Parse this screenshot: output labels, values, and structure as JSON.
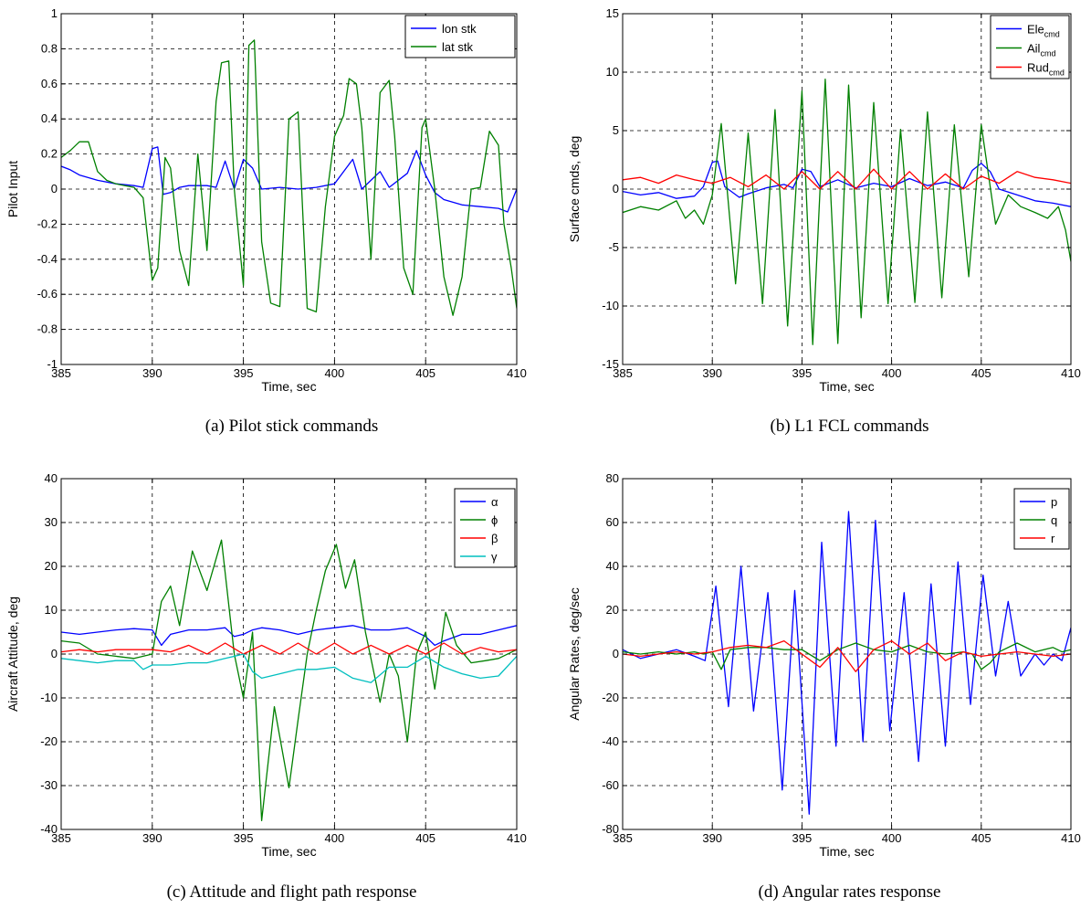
{
  "chart_data": [
    {
      "type": "line",
      "caption": "(a) Pilot stick commands",
      "xlabel": "Time, sec",
      "ylabel": "Pilot Input",
      "xlim": [
        385,
        410
      ],
      "ylim": [
        -1,
        1
      ],
      "xticks": [
        385,
        390,
        395,
        400,
        405,
        410
      ],
      "yticks": [
        -1,
        -0.8,
        -0.6,
        -0.4,
        -0.2,
        0,
        0.2,
        0.4,
        0.6,
        0.8,
        1
      ],
      "ytick_labels": [
        "-1",
        "-0.8",
        "-0.6",
        "-0.4",
        "-0.2",
        "0",
        "0.2",
        "0.4",
        "0.6",
        "0.8",
        "1"
      ],
      "grid": true,
      "legend_position": "top-right",
      "series": [
        {
          "name": "lon stk",
          "color": "#0000ff",
          "x": [
            385,
            385.5,
            386,
            387,
            388,
            389,
            389.5,
            390,
            390.3,
            390.6,
            391,
            391.5,
            392,
            393,
            393.5,
            394,
            394.5,
            395,
            395.5,
            396,
            397,
            398,
            399,
            400,
            401,
            401.5,
            402,
            402.5,
            403,
            404,
            404.5,
            405,
            405.5,
            406,
            407,
            408,
            409,
            409.5,
            410
          ],
          "y": [
            0.13,
            0.11,
            0.08,
            0.05,
            0.03,
            0.02,
            0.01,
            0.23,
            0.24,
            -0.03,
            -0.02,
            0.01,
            0.02,
            0.02,
            0.01,
            0.16,
            0.0,
            0.17,
            0.12,
            0.0,
            0.01,
            0.0,
            0.01,
            0.03,
            0.17,
            0.0,
            0.05,
            0.1,
            0.01,
            0.09,
            0.22,
            0.08,
            -0.02,
            -0.06,
            -0.09,
            -0.1,
            -0.11,
            -0.13,
            0.0
          ]
        },
        {
          "name": "lat stk",
          "color": "#008000",
          "x": [
            385,
            385.5,
            386,
            386.5,
            387,
            387.5,
            388,
            388.5,
            389,
            389.5,
            390,
            390.3,
            390.7,
            391,
            391.5,
            392,
            392.5,
            393,
            393.5,
            393.8,
            394.2,
            394.5,
            395,
            395.3,
            395.6,
            396,
            396.5,
            397,
            397.5,
            398,
            398.5,
            399,
            399.5,
            400,
            400.5,
            400.8,
            401.2,
            401.5,
            402,
            402.5,
            403,
            403.3,
            403.8,
            404.3,
            404.8,
            405,
            405.5,
            406,
            406.5,
            407,
            407.5,
            408,
            408.5,
            409,
            409.3,
            409.7,
            410
          ],
          "y": [
            0.18,
            0.22,
            0.27,
            0.27,
            0.1,
            0.05,
            0.03,
            0.02,
            0.01,
            -0.05,
            -0.52,
            -0.45,
            0.18,
            0.12,
            -0.35,
            -0.55,
            0.2,
            -0.35,
            0.5,
            0.72,
            0.73,
            0.0,
            -0.55,
            0.82,
            0.85,
            -0.3,
            -0.65,
            -0.67,
            0.4,
            0.44,
            -0.68,
            -0.7,
            -0.1,
            0.3,
            0.42,
            0.63,
            0.6,
            0.35,
            -0.4,
            0.55,
            0.62,
            0.3,
            -0.45,
            -0.6,
            0.35,
            0.4,
            0.0,
            -0.5,
            -0.72,
            -0.5,
            0.0,
            0.01,
            0.33,
            0.25,
            -0.2,
            -0.45,
            -0.68
          ]
        }
      ]
    },
    {
      "type": "line",
      "caption": "(b) L1 FCL commands",
      "xlabel": "Time, sec",
      "ylabel": "Surface cmds, deg",
      "xlim": [
        385,
        410
      ],
      "ylim": [
        -15,
        15
      ],
      "xticks": [
        385,
        390,
        395,
        400,
        405,
        410
      ],
      "yticks": [
        -15,
        -10,
        -5,
        0,
        5,
        10,
        15
      ],
      "ytick_labels": [
        "-15",
        "-10",
        "-5",
        "0",
        "5",
        "10",
        "15"
      ],
      "grid": true,
      "legend_position": "top-right",
      "series": [
        {
          "name": "Ele",
          "subscript": "cmd",
          "color": "#0000ff",
          "x": [
            385,
            386,
            387,
            388,
            389,
            389.5,
            390,
            390.3,
            390.7,
            391.5,
            392,
            393,
            394,
            394.5,
            395,
            395.5,
            396,
            397,
            398,
            399,
            400,
            401,
            402,
            403,
            404,
            404.5,
            405,
            405.5,
            406,
            407,
            408,
            409,
            410
          ],
          "y": [
            -0.2,
            -0.5,
            -0.3,
            -0.8,
            -0.6,
            0.2,
            2.3,
            2.4,
            0.2,
            -0.7,
            -0.4,
            0.1,
            0.4,
            0.1,
            1.7,
            1.5,
            0.2,
            0.8,
            0.1,
            0.5,
            0.2,
            0.9,
            0.3,
            0.6,
            0.1,
            1.6,
            2.2,
            1.5,
            0.0,
            -0.5,
            -1.0,
            -1.2,
            -1.5
          ]
        },
        {
          "name": "Ail",
          "subscript": "cmd",
          "color": "#008000",
          "x": [
            385,
            386,
            387,
            388,
            388.5,
            389,
            389.5,
            390,
            390.5,
            391.3,
            392,
            392.8,
            393.5,
            394.2,
            395,
            395.6,
            396.3,
            397,
            397.6,
            398.3,
            399,
            399.8,
            400.5,
            401.3,
            402,
            402.8,
            403.5,
            404.3,
            405,
            405.8,
            406.5,
            407.2,
            408,
            408.7,
            409.3,
            409.7,
            410
          ],
          "y": [
            -2,
            -1.5,
            -1.8,
            -1,
            -2.5,
            -1.8,
            -3,
            -0.5,
            5.6,
            -8.1,
            4.8,
            -9.8,
            6.8,
            -11.7,
            8.4,
            -13.3,
            9.4,
            -13.2,
            8.9,
            -11,
            7.4,
            -9.8,
            5.1,
            -9.7,
            6.6,
            -9.3,
            5.5,
            -7.5,
            5.5,
            -3,
            -0.5,
            -1.5,
            -2,
            -2.5,
            -1.5,
            -3.5,
            -6.2
          ]
        },
        {
          "name": "Rud",
          "subscript": "cmd",
          "color": "#ff0000",
          "x": [
            385,
            386,
            387,
            388,
            389,
            390,
            391,
            392,
            393,
            394,
            395,
            396,
            397,
            398,
            399,
            400,
            401,
            402,
            403,
            404,
            405,
            406,
            407,
            408,
            409,
            410
          ],
          "y": [
            0.8,
            1.0,
            0.5,
            1.2,
            0.8,
            0.5,
            1.0,
            0.2,
            1.2,
            0.0,
            1.5,
            0.0,
            1.5,
            0.0,
            1.7,
            0.0,
            1.5,
            0.0,
            1.3,
            0.0,
            1.1,
            0.5,
            1.5,
            1.0,
            0.8,
            0.5
          ]
        }
      ]
    },
    {
      "type": "line",
      "caption": "(c) Attitude and flight path response",
      "xlabel": "Time, sec",
      "ylabel": "Aircraft Attitude, deg",
      "xlim": [
        385,
        410
      ],
      "ylim": [
        -40,
        40
      ],
      "xticks": [
        385,
        390,
        395,
        400,
        405,
        410
      ],
      "yticks": [
        -40,
        -30,
        -20,
        -10,
        0,
        10,
        20,
        30,
        40
      ],
      "ytick_labels": [
        "-40",
        "-30",
        "-20",
        "-10",
        "0",
        "10",
        "20",
        "30",
        "40"
      ],
      "grid": true,
      "legend_position": "top-right",
      "series": [
        {
          "name": "α",
          "color": "#0000ff",
          "x": [
            385,
            386,
            387,
            388,
            389,
            390,
            390.5,
            391,
            392,
            393,
            394,
            394.5,
            395,
            395.5,
            396,
            397,
            398,
            399,
            400,
            401,
            402,
            403,
            404,
            405,
            405.5,
            406,
            407,
            408,
            409,
            410
          ],
          "y": [
            5,
            4.5,
            5,
            5.5,
            5.8,
            5.5,
            2,
            4.5,
            5.5,
            5.5,
            6,
            4,
            4.5,
            5.5,
            6,
            5.5,
            4.5,
            5.5,
            6,
            6.5,
            5.5,
            5.5,
            6,
            4,
            2,
            3,
            4.5,
            4.5,
            5.5,
            6.5
          ]
        },
        {
          "name": "ϕ",
          "color": "#008000",
          "x": [
            385,
            386,
            387,
            388,
            389,
            390,
            390.5,
            391,
            391.5,
            392.2,
            393,
            393.8,
            394.5,
            395,
            395.5,
            396,
            396.7,
            397.5,
            398,
            398.5,
            399,
            399.5,
            400.1,
            400.6,
            401.1,
            401.7,
            402.5,
            403,
            403.5,
            404,
            404.5,
            405,
            405.5,
            406.1,
            406.7,
            407.5,
            408.3,
            409,
            410
          ],
          "y": [
            3,
            2.5,
            0,
            -0.5,
            -1,
            0,
            12,
            15.5,
            6.5,
            23.5,
            14.5,
            26,
            0,
            -10,
            5,
            -38,
            -12,
            -30.5,
            -15,
            0,
            10,
            19,
            25,
            15,
            21.5,
            5,
            -11,
            0,
            -5,
            -20,
            0,
            5,
            -8,
            9.5,
            2,
            -2,
            -1.5,
            -1,
            1
          ]
        },
        {
          "name": "β",
          "color": "#ff0000",
          "x": [
            385,
            386,
            387,
            388,
            389,
            390,
            391,
            392,
            393,
            394,
            395,
            396,
            397,
            398,
            399,
            400,
            401,
            402,
            403,
            404,
            405,
            406,
            407,
            408,
            409,
            410
          ],
          "y": [
            0.5,
            1,
            0.5,
            1,
            1,
            1,
            0.5,
            2,
            0,
            2.5,
            0,
            2,
            0,
            2.5,
            0,
            2.5,
            0,
            2,
            0,
            2,
            0,
            2.5,
            0,
            1.5,
            0.5,
            1
          ]
        },
        {
          "name": "γ",
          "color": "#00bfbf",
          "x": [
            385,
            386,
            387,
            388,
            389,
            389.5,
            390,
            391,
            392,
            393,
            394,
            395,
            395.5,
            396,
            397,
            398,
            399,
            400,
            401,
            402,
            403,
            404,
            405,
            406,
            407,
            408,
            409,
            410
          ],
          "y": [
            -1,
            -1.5,
            -2,
            -1.5,
            -1.5,
            -3.5,
            -2.5,
            -2.5,
            -2,
            -2,
            -1,
            0,
            -4,
            -5.5,
            -4.5,
            -3.5,
            -3.5,
            -3,
            -5.5,
            -6.5,
            -3,
            -3,
            -0.5,
            -3,
            -4.5,
            -5.5,
            -5,
            -0.5
          ]
        }
      ]
    },
    {
      "type": "line",
      "caption": "(d) Angular rates response",
      "xlabel": "Time, sec",
      "ylabel": "Angular Rates, deg/sec",
      "xlim": [
        385,
        410
      ],
      "ylim": [
        -80,
        80
      ],
      "xticks": [
        385,
        390,
        395,
        400,
        405,
        410
      ],
      "yticks": [
        -80,
        -60,
        -40,
        -20,
        0,
        20,
        40,
        60,
        80
      ],
      "ytick_labels": [
        "-80",
        "-60",
        "-40",
        "-20",
        "0",
        "20",
        "40",
        "60",
        "80"
      ],
      "grid": true,
      "legend_position": "top-right",
      "series": [
        {
          "name": "p",
          "color": "#0000ff",
          "x": [
            385,
            386,
            387,
            388,
            389,
            389.6,
            390.2,
            390.9,
            391.6,
            392.3,
            393.1,
            393.9,
            394.6,
            395.4,
            396.1,
            396.9,
            397.6,
            398.4,
            399.1,
            399.9,
            400.7,
            401.5,
            402.2,
            403,
            403.7,
            404.4,
            405.1,
            405.8,
            406.5,
            407.2,
            408,
            408.5,
            409,
            409.5,
            410
          ],
          "y": [
            2,
            -2,
            0,
            2,
            -1,
            -3,
            31,
            -24,
            40,
            -26,
            28,
            -62,
            29,
            -73,
            51,
            -42,
            65,
            -40,
            61,
            -35,
            28,
            -49,
            32,
            -42,
            42,
            -23,
            36,
            -10,
            24,
            -10,
            0,
            -5,
            0,
            -3,
            12
          ]
        },
        {
          "name": "q",
          "color": "#008000",
          "x": [
            385,
            386,
            387,
            388,
            389,
            389.5,
            390,
            390.5,
            391,
            392,
            393,
            394,
            395,
            396,
            397,
            398,
            399,
            400,
            401,
            402,
            403,
            404,
            404.5,
            405,
            405.5,
            406,
            407,
            408,
            409,
            409.5,
            410
          ],
          "y": [
            1,
            0,
            1,
            0,
            1,
            0,
            1,
            -7,
            2,
            3,
            3,
            2,
            2,
            -3,
            2,
            5,
            2,
            1,
            4,
            1,
            0,
            1,
            0,
            -7,
            -4,
            1,
            5,
            1,
            3,
            1,
            2
          ]
        },
        {
          "name": "r",
          "color": "#ff0000",
          "x": [
            385,
            386,
            387,
            388,
            389,
            390,
            391,
            392,
            393,
            394,
            395,
            396,
            397,
            398,
            399,
            400,
            401,
            402,
            403,
            404,
            405,
            406,
            407,
            408,
            409,
            410
          ],
          "y": [
            0,
            -1,
            0,
            1,
            0,
            1,
            3,
            4,
            3,
            6,
            0,
            -6,
            3,
            -8,
            2,
            6,
            0,
            5,
            -3,
            1,
            -1,
            0,
            1,
            0,
            -1,
            0
          ]
        }
      ]
    }
  ]
}
